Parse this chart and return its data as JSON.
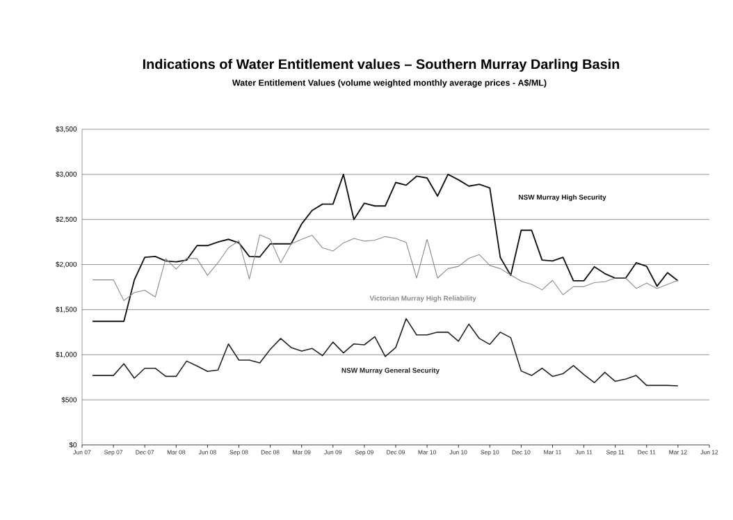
{
  "chart_data": {
    "type": "line",
    "title": "Indications of Water Entitlement values – Southern Murray Darling Basin",
    "subtitle": "Water Entitlement Values (volume weighted monthly average prices - A$/ML)",
    "x": [
      "2007-07",
      "2007-08",
      "2007-09",
      "2007-10",
      "2007-11",
      "2007-12",
      "2008-01",
      "2008-02",
      "2008-03",
      "2008-04",
      "2008-05",
      "2008-06",
      "2008-07",
      "2008-08",
      "2008-09",
      "2008-10",
      "2008-11",
      "2008-12",
      "2009-01",
      "2009-02",
      "2009-03",
      "2009-04",
      "2009-05",
      "2009-06",
      "2009-07",
      "2009-08",
      "2009-09",
      "2009-10",
      "2009-11",
      "2009-12",
      "2010-01",
      "2010-02",
      "2010-03",
      "2010-04",
      "2010-05",
      "2010-06",
      "2010-07",
      "2010-08",
      "2010-09",
      "2010-10",
      "2010-11",
      "2010-12",
      "2011-01",
      "2011-02",
      "2011-03",
      "2011-04",
      "2011-05",
      "2011-06",
      "2011-07",
      "2011-08",
      "2011-09",
      "2011-10",
      "2011-11",
      "2011-12",
      "2012-01",
      "2012-02",
      "2012-03"
    ],
    "series": [
      {
        "name": "NSW Murray High Security",
        "color": "#111111",
        "values": [
          1370,
          1370,
          1370,
          1370,
          1830,
          2080,
          2090,
          2040,
          2030,
          2050,
          2210,
          2210,
          2250,
          2280,
          2240,
          2090,
          2085,
          2230,
          2230,
          2230,
          2450,
          2600,
          2670,
          2670,
          3000,
          2500,
          2680,
          2650,
          2650,
          2910,
          2880,
          2980,
          2960,
          2760,
          3000,
          2940,
          2870,
          2890,
          2850,
          2080,
          1880,
          2380,
          2380,
          2050,
          2040,
          2080,
          1820,
          1820,
          1975,
          1900,
          1850,
          1850,
          2020,
          1980,
          1760,
          1910,
          1820
        ]
      },
      {
        "name": "Victorian Murray High Reliability",
        "color": "#8c8c8c",
        "values": [
          1830,
          1830,
          1830,
          1600,
          1690,
          1715,
          1640,
          2065,
          1950,
          2070,
          2065,
          1880,
          2020,
          2185,
          2265,
          1840,
          2330,
          2280,
          2020,
          2230,
          2280,
          2325,
          2185,
          2150,
          2240,
          2290,
          2260,
          2270,
          2310,
          2290,
          2245,
          1850,
          2280,
          1850,
          1955,
          1980,
          2070,
          2110,
          1990,
          1955,
          1885,
          1815,
          1780,
          1720,
          1825,
          1665,
          1755,
          1755,
          1800,
          1810,
          1850,
          1850,
          1735,
          1795,
          1735,
          1780,
          1825
        ]
      },
      {
        "name": "NSW Murray General Security",
        "color": "#222222",
        "values": [
          770,
          770,
          770,
          900,
          740,
          850,
          850,
          760,
          760,
          930,
          875,
          815,
          830,
          1120,
          940,
          940,
          910,
          1060,
          1180,
          1080,
          1040,
          1070,
          990,
          1140,
          1020,
          1120,
          1110,
          1200,
          980,
          1080,
          1400,
          1220,
          1220,
          1250,
          1250,
          1150,
          1340,
          1180,
          1115,
          1250,
          1190,
          820,
          770,
          850,
          760,
          790,
          880,
          780,
          690,
          805,
          705,
          730,
          770,
          660,
          660,
          660,
          655
        ]
      }
    ],
    "xlim": [
      "2007-06",
      "2012-06"
    ],
    "xticks": [
      {
        "value": "2007-06",
        "label": "Jun 07"
      },
      {
        "value": "2007-09",
        "label": "Sep 07"
      },
      {
        "value": "2007-12",
        "label": "Dec 07"
      },
      {
        "value": "2008-03",
        "label": "Mar 08"
      },
      {
        "value": "2008-06",
        "label": "Jun 08"
      },
      {
        "value": "2008-09",
        "label": "Sep 08"
      },
      {
        "value": "2008-12",
        "label": "Dec 08"
      },
      {
        "value": "2009-03",
        "label": "Mar 09"
      },
      {
        "value": "2009-06",
        "label": "Jun 09"
      },
      {
        "value": "2009-09",
        "label": "Sep 09"
      },
      {
        "value": "2009-12",
        "label": "Dec 09"
      },
      {
        "value": "2010-03",
        "label": "Mar 10"
      },
      {
        "value": "2010-06",
        "label": "Jun 10"
      },
      {
        "value": "2010-09",
        "label": "Sep 10"
      },
      {
        "value": "2010-12",
        "label": "Dec 10"
      },
      {
        "value": "2011-03",
        "label": "Mar 11"
      },
      {
        "value": "2011-06",
        "label": "Jun 11"
      },
      {
        "value": "2011-09",
        "label": "Sep 11"
      },
      {
        "value": "2011-12",
        "label": "Dec 11"
      },
      {
        "value": "2012-03",
        "label": "Mar 12"
      },
      {
        "value": "2012-06",
        "label": "Jun 12"
      }
    ],
    "ylim": [
      0,
      3500
    ],
    "yticks": [
      {
        "value": 0,
        "label": "$0"
      },
      {
        "value": 500,
        "label": "$500"
      },
      {
        "value": 1000,
        "label": "$1,000"
      },
      {
        "value": 1500,
        "label": "$1,500"
      },
      {
        "value": 2000,
        "label": "$2,000"
      },
      {
        "value": 2500,
        "label": "$2,500"
      },
      {
        "value": 3000,
        "label": "$3,000"
      },
      {
        "value": 3500,
        "label": "$3,500"
      }
    ],
    "grid": "y",
    "legend": false
  }
}
